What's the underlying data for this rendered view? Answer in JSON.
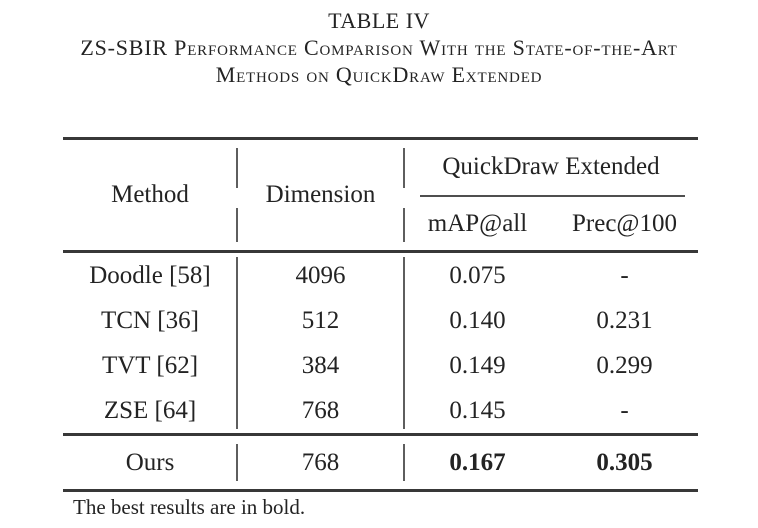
{
  "caption": {
    "label": "TABLE IV",
    "line1": "ZS-SBIR Performance Comparison With the State-of-the-Art",
    "line2": "Methods on QuickDraw Extended"
  },
  "table": {
    "headers": {
      "method": "Method",
      "dimension": "Dimension",
      "group": "QuickDraw Extended",
      "metric1": "mAP@all",
      "metric2": "Prec@100"
    },
    "rows": [
      {
        "method": "Doodle [58]",
        "dimension": "4096",
        "map_all": "0.075",
        "prec100": "-"
      },
      {
        "method": "TCN [36]",
        "dimension": "512",
        "map_all": "0.140",
        "prec100": "0.231"
      },
      {
        "method": "TVT [62]",
        "dimension": "384",
        "map_all": "0.149",
        "prec100": "0.299"
      },
      {
        "method": "ZSE [64]",
        "dimension": "768",
        "map_all": "0.145",
        "prec100": "-"
      }
    ],
    "ours": {
      "method": "Ours",
      "dimension": "768",
      "map_all": "0.167",
      "prec100": "0.305"
    },
    "footnote": "The best results are in bold."
  },
  "colors": {
    "background": "#ffffff",
    "text": "#232323",
    "rule": "#383838",
    "vrule": "#5e5e5e",
    "cline": "#4f4f4f"
  }
}
